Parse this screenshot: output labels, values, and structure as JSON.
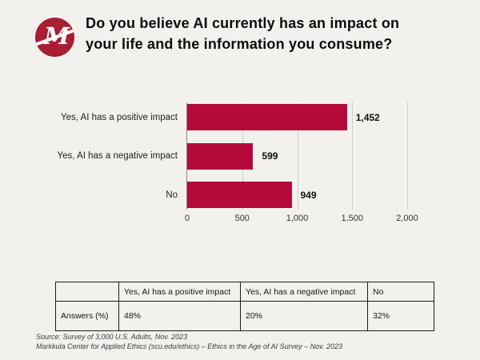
{
  "header": {
    "logo_name": "markkula-m-logo",
    "title_line1": "Do you believe AI currently has an impact on",
    "title_line2": "your life and the information you consume?"
  },
  "chart_data": {
    "type": "bar",
    "orientation": "horizontal",
    "title": "Do you believe AI currently has an impact on your life and the information you consume?",
    "categories": [
      "Yes, AI has a positive impact",
      "Yes, AI has a negative impact",
      "No"
    ],
    "values": [
      1452,
      599,
      949
    ],
    "value_labels": [
      "1,452",
      "599",
      "949"
    ],
    "xlabel": "",
    "ylabel": "",
    "xlim": [
      0,
      2000
    ],
    "x_ticks": [
      0,
      500,
      1000,
      1500,
      2000
    ],
    "x_tick_labels": [
      "0",
      "500",
      "1,000",
      "1,500",
      "2,000"
    ],
    "grid": true,
    "legend": false,
    "bar_color": "#B50939"
  },
  "table": {
    "headers": [
      "",
      "Yes, AI has a positive impact",
      "Yes, AI has a negative impact",
      "No"
    ],
    "rows": [
      {
        "label": "Answers (%)",
        "values": [
          "48%",
          "20%",
          "32%"
        ]
      }
    ]
  },
  "footer": {
    "line1": "Source: Survey of 3,000 U.S. Adults, Nov. 2023",
    "line2": "Markkula Center for Applied Ethics  (scu.edu/ethics) –  Ethics in the Age of AI Survey – Nov. 2023"
  },
  "colors": {
    "background": "#F2F1EE",
    "bar": "#B50939",
    "logo": "#A81E32",
    "gridline": "#CDCCC8",
    "axis": "#8A8A8A"
  }
}
